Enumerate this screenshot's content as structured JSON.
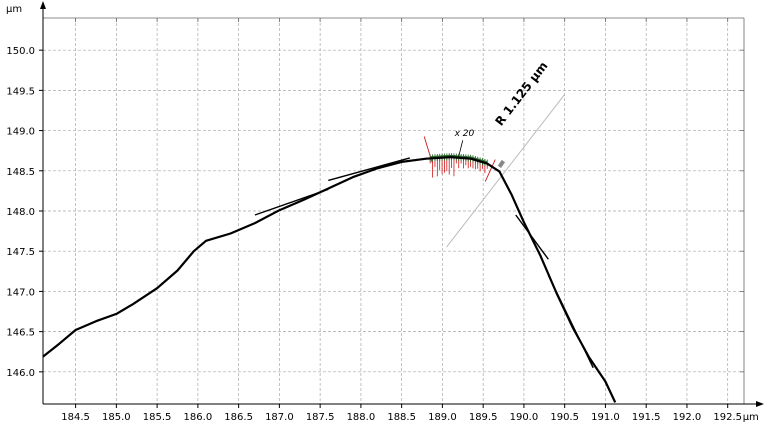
{
  "chart_data": {
    "type": "line",
    "title": "",
    "xunit": "µm",
    "yunit": "µm",
    "grid": true,
    "xlim": [
      184.1,
      192.7
    ],
    "ylim": [
      145.6,
      150.4
    ],
    "x_ticks": [
      184.5,
      185.0,
      185.5,
      186.0,
      186.5,
      187.0,
      187.5,
      188.0,
      188.5,
      189.0,
      189.5,
      190.0,
      190.5,
      191.0,
      191.5,
      192.0,
      192.5
    ],
    "x_tick_labels": [
      "184.5",
      "185.0",
      "185.5",
      "186.0",
      "186.5",
      "187.0",
      "187.5",
      "188.0",
      "188.5",
      "189.0",
      "189.5",
      "190.0",
      "190.5",
      "191.0",
      "191.5",
      "192.0",
      "192.5"
    ],
    "y_ticks": [
      146.0,
      146.5,
      147.0,
      147.5,
      148.0,
      148.5,
      149.0,
      149.5,
      150.0
    ],
    "y_tick_labels": [
      "146.0",
      "146.5",
      "147.0",
      "147.5",
      "148.0",
      "148.5",
      "149.0",
      "149.5",
      "150.0"
    ],
    "profile": [
      [
        184.1,
        146.19
      ],
      [
        184.3,
        146.35
      ],
      [
        184.5,
        146.52
      ],
      [
        184.75,
        146.63
      ],
      [
        185.0,
        146.72
      ],
      [
        185.2,
        146.84
      ],
      [
        185.5,
        147.04
      ],
      [
        185.75,
        147.26
      ],
      [
        185.95,
        147.5
      ],
      [
        186.1,
        147.63
      ],
      [
        186.4,
        147.72
      ],
      [
        186.7,
        147.85
      ],
      [
        187.0,
        148.01
      ],
      [
        187.3,
        148.14
      ],
      [
        187.6,
        148.28
      ],
      [
        187.9,
        148.42
      ],
      [
        188.2,
        148.53
      ],
      [
        188.5,
        148.61
      ],
      [
        188.8,
        148.65
      ],
      [
        189.1,
        148.67
      ],
      [
        189.35,
        148.65
      ],
      [
        189.55,
        148.59
      ],
      [
        189.7,
        148.49
      ],
      [
        189.85,
        148.2
      ],
      [
        190.0,
        147.86
      ],
      [
        190.2,
        147.45
      ],
      [
        190.4,
        146.98
      ],
      [
        190.6,
        146.55
      ],
      [
        190.8,
        146.18
      ],
      [
        191.0,
        145.88
      ],
      [
        191.12,
        145.62
      ]
    ],
    "fit_segments": [
      [
        [
          186.7,
          147.95
        ],
        [
          187.6,
          148.27
        ]
      ],
      [
        [
          187.6,
          148.38
        ],
        [
          188.6,
          148.66
        ]
      ],
      [
        [
          189.9,
          147.95
        ],
        [
          190.3,
          147.4
        ]
      ],
      [
        [
          190.3,
          147.2
        ],
        [
          190.85,
          146.05
        ]
      ]
    ],
    "radius_fit": {
      "label": "R 1.125 µm",
      "magnification_label": "x 20",
      "arc_x_range": [
        188.85,
        189.55
      ],
      "axis_line": [
        [
          189.05,
          147.55
        ],
        [
          190.5,
          149.45
        ]
      ],
      "colors": {
        "arc": "#2d6b2d",
        "residual": "#d01818",
        "axis": "#bbbbbb"
      }
    },
    "colors": {
      "profile": "#000000",
      "grid": "#a8a8a8",
      "axis": "#000000"
    }
  }
}
